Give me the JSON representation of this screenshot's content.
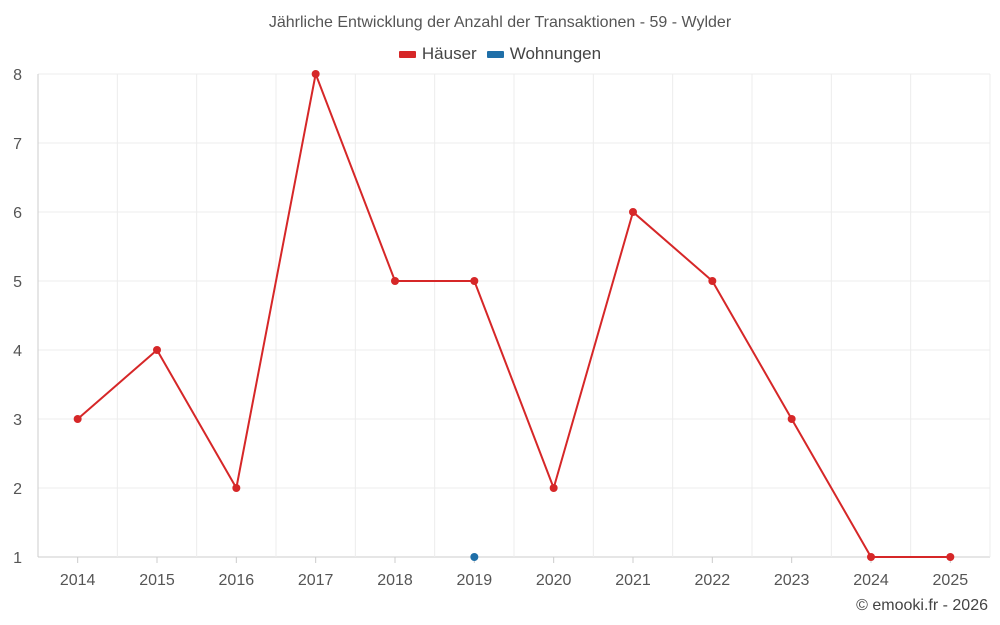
{
  "chart_data": {
    "type": "line",
    "title": "Jährliche Entwicklung der Anzahl der Transaktionen - 59 - Wylder",
    "xlabel": "",
    "ylabel": "",
    "categories": [
      "2014",
      "2015",
      "2016",
      "2017",
      "2018",
      "2019",
      "2020",
      "2021",
      "2022",
      "2023",
      "2024",
      "2025"
    ],
    "ylim": [
      1,
      8
    ],
    "yticks": [
      1,
      2,
      3,
      4,
      5,
      6,
      7,
      8
    ],
    "grid": true,
    "legend_position": "top-center",
    "series": [
      {
        "name": "Häuser",
        "color": "#d62728",
        "values": [
          3,
          4,
          2,
          8,
          5,
          5,
          2,
          6,
          5,
          3,
          1,
          1
        ]
      },
      {
        "name": "Wohnungen",
        "color": "#1f6fa8",
        "values": [
          null,
          null,
          null,
          null,
          null,
          1,
          null,
          null,
          null,
          null,
          null,
          null
        ]
      }
    ]
  },
  "legend": {
    "houses_label": "Häuser",
    "apartments_label": "Wohnungen"
  },
  "credit": "© emooki.fr - 2026"
}
